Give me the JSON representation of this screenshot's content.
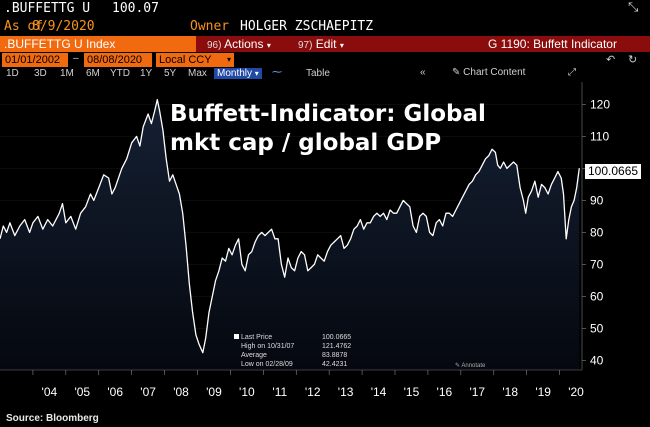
{
  "header": {
    "ticker": ".BUFFETTG U",
    "last_price": "100.07",
    "as_of_label": "As of",
    "as_of_date": "8/9/2020",
    "owner_label": "Owner",
    "owner_name": "HOLGER ZSCHAEPITZ",
    "close_icon": "close-icon"
  },
  "toolbar": {
    "security": ".BUFFETTG U Index",
    "actions_num": "96)",
    "actions_label": "Actions",
    "edit_num": "97)",
    "edit_label": "Edit",
    "function_title": "G 1190: Buffett Indicator"
  },
  "date_range": {
    "start": "01/01/2002",
    "end": "08/08/2020",
    "currency": "Local CCY"
  },
  "tabs": [
    "1D",
    "3D",
    "1M",
    "6M",
    "YTD",
    "1Y",
    "5Y",
    "Max"
  ],
  "period": "Monthly",
  "table_label": "Table",
  "chart_content_label": "Chart Content",
  "colors": {
    "accent": "#f7931e",
    "toolbar_bg": "#8b0c0c",
    "input_bg": "#f26a10",
    "line": "#ffffff"
  },
  "chart_data": {
    "type": "area",
    "title": "Buffett-Indicator: Global mkt cap / global GDP",
    "x_start": 2003.0,
    "x_end": 2020.62,
    "y_range": [
      37,
      127
    ],
    "y_ticks": [
      40,
      50,
      60,
      70,
      80,
      90,
      100,
      110,
      120
    ],
    "x_ticks": [
      {
        "label": "'04",
        "year": 2004
      },
      {
        "label": "'05",
        "year": 2005
      },
      {
        "label": "'06",
        "year": 2006
      },
      {
        "label": "'07",
        "year": 2007
      },
      {
        "label": "'08",
        "year": 2008
      },
      {
        "label": "'09",
        "year": 2009
      },
      {
        "label": "'10",
        "year": 2010
      },
      {
        "label": "'11",
        "year": 2011
      },
      {
        "label": "'12",
        "year": 2012
      },
      {
        "label": "'13",
        "year": 2013
      },
      {
        "label": "'14",
        "year": 2014
      },
      {
        "label": "'15",
        "year": 2015
      },
      {
        "label": "'16",
        "year": 2016
      },
      {
        "label": "'17",
        "year": 2017
      },
      {
        "label": "'18",
        "year": 2018
      },
      {
        "label": "'19",
        "year": 2019
      },
      {
        "label": "'20",
        "year": 2020
      }
    ],
    "last_value_label": "100.0665",
    "points": [
      [
        2003.0,
        78
      ],
      [
        2003.1,
        82
      ],
      [
        2003.2,
        80
      ],
      [
        2003.3,
        83
      ],
      [
        2003.45,
        79
      ],
      [
        2003.6,
        82
      ],
      [
        2003.75,
        84
      ],
      [
        2003.9,
        80
      ],
      [
        2004.0,
        83
      ],
      [
        2004.15,
        85
      ],
      [
        2004.3,
        81
      ],
      [
        2004.45,
        84
      ],
      [
        2004.6,
        82
      ],
      [
        2004.8,
        86
      ],
      [
        2004.9,
        89
      ],
      [
        2005.0,
        83
      ],
      [
        2005.15,
        85
      ],
      [
        2005.3,
        81
      ],
      [
        2005.45,
        86
      ],
      [
        2005.6,
        88
      ],
      [
        2005.75,
        92
      ],
      [
        2005.85,
        90
      ],
      [
        2006.0,
        94
      ],
      [
        2006.15,
        98
      ],
      [
        2006.3,
        97
      ],
      [
        2006.4,
        92
      ],
      [
        2006.5,
        94
      ],
      [
        2006.7,
        100
      ],
      [
        2006.85,
        103
      ],
      [
        2007.0,
        108
      ],
      [
        2007.15,
        110
      ],
      [
        2007.25,
        107
      ],
      [
        2007.35,
        113
      ],
      [
        2007.5,
        117
      ],
      [
        2007.6,
        114
      ],
      [
        2007.7,
        118
      ],
      [
        2007.78,
        121.5
      ],
      [
        2007.85,
        118
      ],
      [
        2007.95,
        112
      ],
      [
        2008.05,
        103
      ],
      [
        2008.15,
        96
      ],
      [
        2008.25,
        98
      ],
      [
        2008.35,
        95
      ],
      [
        2008.45,
        92
      ],
      [
        2008.55,
        86
      ],
      [
        2008.65,
        76
      ],
      [
        2008.75,
        64
      ],
      [
        2008.85,
        55
      ],
      [
        2008.95,
        48
      ],
      [
        2009.05,
        45
      ],
      [
        2009.16,
        42.4
      ],
      [
        2009.25,
        47
      ],
      [
        2009.35,
        55
      ],
      [
        2009.45,
        60
      ],
      [
        2009.55,
        65
      ],
      [
        2009.65,
        68
      ],
      [
        2009.75,
        72
      ],
      [
        2009.85,
        71
      ],
      [
        2009.95,
        75
      ],
      [
        2010.05,
        73
      ],
      [
        2010.15,
        76
      ],
      [
        2010.25,
        78
      ],
      [
        2010.35,
        70
      ],
      [
        2010.45,
        68
      ],
      [
        2010.55,
        73
      ],
      [
        2010.65,
        74
      ],
      [
        2010.75,
        77
      ],
      [
        2010.85,
        79
      ],
      [
        2010.95,
        80
      ],
      [
        2011.05,
        79
      ],
      [
        2011.15,
        80
      ],
      [
        2011.25,
        81
      ],
      [
        2011.35,
        78
      ],
      [
        2011.45,
        78
      ],
      [
        2011.55,
        70
      ],
      [
        2011.65,
        66
      ],
      [
        2011.75,
        72
      ],
      [
        2011.85,
        69
      ],
      [
        2011.95,
        68
      ],
      [
        2012.05,
        72
      ],
      [
        2012.15,
        74
      ],
      [
        2012.25,
        73
      ],
      [
        2012.35,
        68
      ],
      [
        2012.45,
        69
      ],
      [
        2012.55,
        70
      ],
      [
        2012.65,
        73
      ],
      [
        2012.75,
        72
      ],
      [
        2012.85,
        71
      ],
      [
        2012.95,
        74
      ],
      [
        2013.05,
        76
      ],
      [
        2013.15,
        77
      ],
      [
        2013.25,
        78
      ],
      [
        2013.35,
        79
      ],
      [
        2013.45,
        75
      ],
      [
        2013.55,
        76
      ],
      [
        2013.65,
        78
      ],
      [
        2013.75,
        81
      ],
      [
        2013.85,
        82
      ],
      [
        2013.95,
        84
      ],
      [
        2014.05,
        81
      ],
      [
        2014.15,
        83
      ],
      [
        2014.25,
        83
      ],
      [
        2014.35,
        85
      ],
      [
        2014.45,
        86
      ],
      [
        2014.55,
        85
      ],
      [
        2014.65,
        86
      ],
      [
        2014.75,
        84
      ],
      [
        2014.85,
        87
      ],
      [
        2014.95,
        86
      ],
      [
        2015.05,
        86
      ],
      [
        2015.15,
        88
      ],
      [
        2015.25,
        90
      ],
      [
        2015.35,
        89
      ],
      [
        2015.45,
        88
      ],
      [
        2015.55,
        82
      ],
      [
        2015.65,
        80
      ],
      [
        2015.75,
        85
      ],
      [
        2015.85,
        86
      ],
      [
        2015.95,
        85
      ],
      [
        2016.05,
        80
      ],
      [
        2016.15,
        79
      ],
      [
        2016.25,
        83
      ],
      [
        2016.35,
        84
      ],
      [
        2016.45,
        82
      ],
      [
        2016.55,
        86
      ],
      [
        2016.65,
        86
      ],
      [
        2016.75,
        85
      ],
      [
        2016.85,
        87
      ],
      [
        2016.95,
        89
      ],
      [
        2017.05,
        91
      ],
      [
        2017.15,
        93
      ],
      [
        2017.25,
        95
      ],
      [
        2017.35,
        96
      ],
      [
        2017.45,
        98
      ],
      [
        2017.55,
        99
      ],
      [
        2017.65,
        101
      ],
      [
        2017.75,
        103
      ],
      [
        2017.85,
        104
      ],
      [
        2017.95,
        106
      ],
      [
        2018.05,
        105
      ],
      [
        2018.12,
        101
      ],
      [
        2018.2,
        100
      ],
      [
        2018.3,
        102
      ],
      [
        2018.4,
        100
      ],
      [
        2018.5,
        101
      ],
      [
        2018.6,
        102
      ],
      [
        2018.7,
        101
      ],
      [
        2018.8,
        94
      ],
      [
        2018.9,
        90
      ],
      [
        2018.97,
        86
      ],
      [
        2019.05,
        91
      ],
      [
        2019.15,
        93
      ],
      [
        2019.25,
        96
      ],
      [
        2019.35,
        91
      ],
      [
        2019.45,
        95
      ],
      [
        2019.55,
        94
      ],
      [
        2019.65,
        92
      ],
      [
        2019.75,
        95
      ],
      [
        2019.85,
        97
      ],
      [
        2019.95,
        99
      ],
      [
        2020.05,
        97
      ],
      [
        2020.12,
        92
      ],
      [
        2020.2,
        78
      ],
      [
        2020.28,
        84
      ],
      [
        2020.36,
        88
      ],
      [
        2020.44,
        90
      ],
      [
        2020.52,
        94
      ],
      [
        2020.6,
        100.07
      ]
    ],
    "legend": [
      {
        "label": "Last Price",
        "value": "100.0665"
      },
      {
        "label": "High on 10/31/07",
        "value": "121.4762"
      },
      {
        "label": "Average",
        "value": "83.8878"
      },
      {
        "label": "Low on 02/28/09",
        "value": "42.4231"
      }
    ],
    "annotation": "Annotate"
  },
  "source": "Source: Bloomberg"
}
